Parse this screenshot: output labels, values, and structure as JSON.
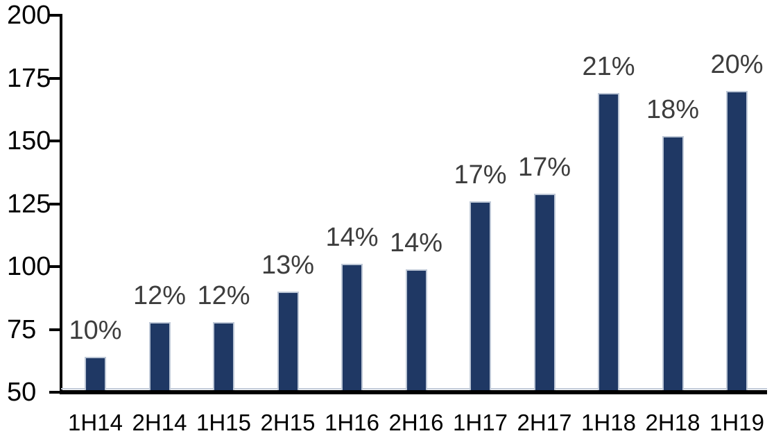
{
  "chart_data": {
    "type": "bar",
    "title": "",
    "xlabel": "",
    "ylabel": "",
    "categories": [
      "1H14",
      "2H14",
      "1H15",
      "2H15",
      "1H16",
      "2H16",
      "1H17",
      "2H17",
      "1H18",
      "2H18",
      "1H19"
    ],
    "values": [
      64,
      78,
      78,
      90,
      101,
      99,
      126,
      129,
      169,
      152,
      170
    ],
    "bar_labels": [
      "10%",
      "12%",
      "12%",
      "13%",
      "14%",
      "14%",
      "17%",
      "17%",
      "21%",
      "18%",
      "20%"
    ],
    "ylim": [
      50,
      200
    ],
    "yticks": [
      200,
      175,
      150,
      125,
      100,
      75,
      50
    ],
    "grid": false,
    "legend": false,
    "colors": {
      "bar_fill": "#1f3864",
      "bar_border": "#bdc7d6",
      "data_label": "#3d3d3d",
      "axis": "#000000",
      "tick_label": "#000000",
      "background": "#ffffff"
    }
  }
}
